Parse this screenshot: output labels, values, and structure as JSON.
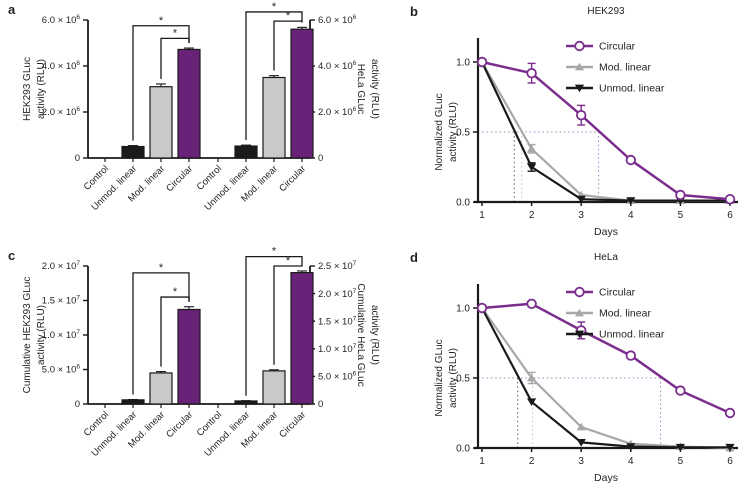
{
  "colors": {
    "purple_bar": "#682277",
    "purple_line": "#7b2d8e",
    "purple_dot": "#a97fbc",
    "gray_bar": "#c9c9c9",
    "gray_line": "#a8a8a8",
    "gray_dot": "#c4c4c4",
    "black": "#1a1a1a",
    "black_dot": "#5a5a5a",
    "text": "#231f20",
    "white": "#ffffff"
  },
  "panels": {
    "a": {
      "label": "a"
    },
    "b": {
      "label": "b"
    },
    "c": {
      "label": "c"
    },
    "d": {
      "label": "d"
    }
  },
  "chart_data": [
    {
      "panel": "a",
      "type": "bar",
      "categories": [
        "Control",
        "Unmod. linear",
        "Mod. linear",
        "Circular"
      ],
      "bar_styles": [
        "none",
        "black",
        "gray",
        "purple"
      ],
      "left_axis": {
        "label_lines": [
          "HEK293 GLuc",
          "activity (RLU)"
        ],
        "max": 6000000,
        "ticks": [
          {
            "v": 0,
            "text": "0"
          },
          {
            "v": 2000000,
            "text": "2.0 × 10",
            "sup": "6"
          },
          {
            "v": 4000000,
            "text": "4.0 × 10",
            "sup": "6"
          },
          {
            "v": 6000000,
            "text": "6.0 × 10",
            "sup": "6"
          }
        ]
      },
      "right_axis": {
        "label_lines": [
          "HeLa GLuc",
          "activity (RLU)"
        ],
        "max": 6000000,
        "ticks": [
          {
            "v": 0,
            "text": "0"
          },
          {
            "v": 2000000,
            "text": "2.0 × 10",
            "sup": "6"
          },
          {
            "v": 4000000,
            "text": "4.0 × 10",
            "sup": "6"
          },
          {
            "v": 6000000,
            "text": "6.0 × 10",
            "sup": "6"
          }
        ]
      },
      "groups": [
        {
          "name": "HEK293",
          "axis": "left",
          "values": [
            0,
            500000,
            3100000,
            4720000
          ],
          "errors": [
            0,
            40000,
            120000,
            60000
          ]
        },
        {
          "name": "HeLa",
          "axis": "right",
          "values": [
            0,
            520000,
            3500000,
            5600000
          ],
          "errors": [
            0,
            40000,
            80000,
            80000
          ]
        }
      ],
      "significance": [
        {
          "group": 0,
          "from": 1,
          "to": 3,
          "level": 5750000,
          "label": "*"
        },
        {
          "group": 0,
          "from": 2,
          "to": 3,
          "level": 5200000,
          "label": "*"
        },
        {
          "group": 1,
          "from": 1,
          "to": 3,
          "level": 6350000,
          "label": "*"
        },
        {
          "group": 1,
          "from": 2,
          "to": 3,
          "level": 5950000,
          "label": "*"
        }
      ]
    },
    {
      "panel": "b",
      "type": "line",
      "title": "HEK293",
      "xlabel": "Days",
      "ylabel_lines": [
        "Normalized GLuc",
        "activity (RLU)"
      ],
      "x": [
        1,
        2,
        3,
        4,
        5,
        6
      ],
      "xlim": [
        1,
        6
      ],
      "ylim": [
        0,
        1.0
      ],
      "yticks": [
        {
          "v": 0,
          "text": "0.0"
        },
        {
          "v": 0.5,
          "text": "0.5"
        },
        {
          "v": 1.0,
          "text": "1.0"
        }
      ],
      "series": [
        {
          "name": "Circular",
          "color_key": "purple_line",
          "marker": "circle-open",
          "values": [
            1.0,
            0.92,
            0.62,
            0.3,
            0.05,
            0.02
          ],
          "errors": [
            0,
            0.07,
            0.07,
            0,
            0.02,
            0
          ]
        },
        {
          "name": "Mod. linear",
          "color_key": "gray_line",
          "marker": "triangle-up",
          "values": [
            1.0,
            0.38,
            0.05,
            0.01,
            0.01,
            0.01
          ],
          "errors": [
            0,
            0.03,
            0,
            0,
            0,
            0
          ]
        },
        {
          "name": "Unmod. linear",
          "color_key": "black",
          "marker": "triangle-down",
          "values": [
            1.0,
            0.25,
            0.02,
            0.01,
            0.01,
            0.01
          ],
          "errors": [
            0,
            0.03,
            0,
            0,
            0,
            0
          ]
        }
      ],
      "half_life_guides": {
        "y": 0.5,
        "verticals": [
          {
            "x": 1.65,
            "color_key": "black_dot"
          },
          {
            "x": 1.8,
            "color_key": "gray_dot"
          },
          {
            "x": 3.35,
            "color_key": "purple_dot"
          }
        ]
      },
      "legend": [
        "Circular",
        "Mod. linear",
        "Unmod. linear"
      ]
    },
    {
      "panel": "c",
      "type": "bar",
      "categories": [
        "Control",
        "Unmod. linear",
        "Mod. linear",
        "Circular"
      ],
      "bar_styles": [
        "none",
        "black",
        "gray",
        "purple"
      ],
      "left_axis": {
        "label_lines": [
          "Cumulative HEK293 GLuc",
          "activity (RLU)"
        ],
        "max": 20000000,
        "ticks": [
          {
            "v": 0,
            "text": "0"
          },
          {
            "v": 5000000,
            "text": "5.0 × 10",
            "sup": "6"
          },
          {
            "v": 10000000,
            "text": "1.0 × 10",
            "sup": "7"
          },
          {
            "v": 15000000,
            "text": "1.5 × 10",
            "sup": "7"
          },
          {
            "v": 20000000,
            "text": "2.0 × 10",
            "sup": "7"
          }
        ]
      },
      "right_axis": {
        "label_lines": [
          "Cumulative HeLa GLuc",
          "activity (RLU)"
        ],
        "max": 25000000,
        "ticks": [
          {
            "v": 0,
            "text": "0"
          },
          {
            "v": 5000000,
            "text": "5.0 × 10",
            "sup": "6"
          },
          {
            "v": 10000000,
            "text": "1.0 × 10",
            "sup": "7"
          },
          {
            "v": 15000000,
            "text": "1.5 × 10",
            "sup": "7"
          },
          {
            "v": 20000000,
            "text": "2.0 × 10",
            "sup": "7"
          },
          {
            "v": 25000000,
            "text": "2.5 × 10",
            "sup": "7"
          }
        ]
      },
      "groups": [
        {
          "name": "HEK293",
          "axis": "left",
          "values": [
            0,
            600000,
            4500000,
            13700000
          ],
          "errors": [
            0,
            50000,
            200000,
            400000
          ]
        },
        {
          "name": "HeLa",
          "axis": "right",
          "values": [
            0,
            550000,
            6000000,
            23800000
          ],
          "errors": [
            0,
            50000,
            200000,
            300000
          ]
        }
      ],
      "significance": [
        {
          "group": 0,
          "from": 1,
          "to": 3,
          "level": 19000000,
          "label": "*"
        },
        {
          "group": 0,
          "from": 2,
          "to": 3,
          "level": 15500000,
          "label": "*"
        },
        {
          "group": 1,
          "from": 1,
          "to": 3,
          "level": 26700000,
          "label": "*"
        },
        {
          "group": 1,
          "from": 2,
          "to": 3,
          "level": 25000000,
          "label": "*"
        }
      ]
    },
    {
      "panel": "d",
      "type": "line",
      "title": "HeLa",
      "xlabel": "Days",
      "ylabel_lines": [
        "Normalized GLuc",
        "activity (RLU)"
      ],
      "x": [
        1,
        2,
        3,
        4,
        5,
        6
      ],
      "xlim": [
        1,
        6
      ],
      "ylim": [
        0,
        1.0
      ],
      "yticks": [
        {
          "v": 0,
          "text": "0.0"
        },
        {
          "v": 0.5,
          "text": "0.5"
        },
        {
          "v": 1.0,
          "text": "1.0"
        }
      ],
      "series": [
        {
          "name": "Circular",
          "color_key": "purple_line",
          "marker": "circle-open",
          "values": [
            1.0,
            1.03,
            0.84,
            0.66,
            0.41,
            0.25
          ],
          "errors": [
            0,
            0,
            0.06,
            0.02,
            0,
            0
          ]
        },
        {
          "name": "Mod. linear",
          "color_key": "gray_line",
          "marker": "triangle-up",
          "values": [
            1.0,
            0.5,
            0.15,
            0.03,
            0.01,
            0.0
          ],
          "errors": [
            0,
            0.04,
            0,
            0,
            0,
            0
          ]
        },
        {
          "name": "Unmod. linear",
          "color_key": "black",
          "marker": "triangle-down",
          "values": [
            1.0,
            0.33,
            0.04,
            0.01,
            0.005,
            0.005
          ],
          "errors": [
            0,
            0,
            0,
            0,
            0,
            0
          ]
        }
      ],
      "half_life_guides": {
        "y": 0.5,
        "verticals": [
          {
            "x": 1.72,
            "color_key": "black_dot"
          },
          {
            "x": 2.02,
            "color_key": "gray_dot"
          },
          {
            "x": 4.6,
            "color_key": "purple_dot"
          }
        ]
      },
      "legend": [
        "Circular",
        "Mod. linear",
        "Unmod. linear"
      ]
    }
  ]
}
